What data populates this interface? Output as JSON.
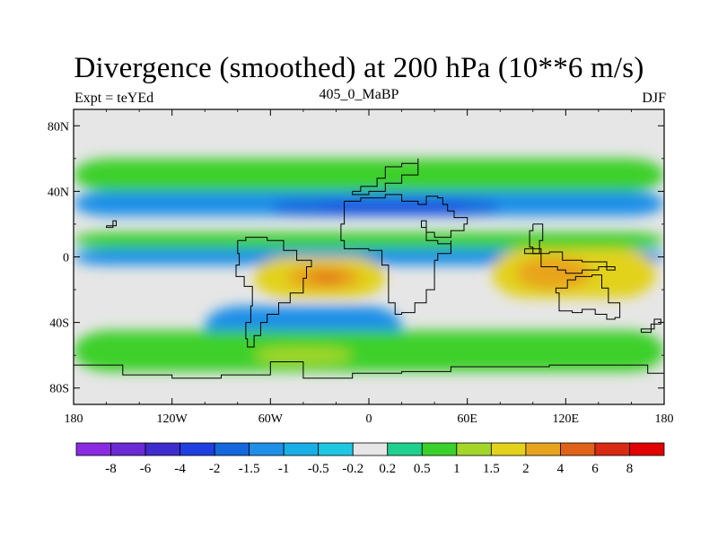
{
  "chart_data": {
    "type": "heatmap",
    "title": "Divergence (smoothed) at 200 hPa (10**6 m/s)",
    "left_subtitle": "Expt = teYEd",
    "center_subtitle": "405_0_MaBP",
    "right_subtitle": "DJF",
    "projection": "cylindrical equidistant",
    "xlim": [
      -180,
      180
    ],
    "ylim": [
      -90,
      90
    ],
    "x_ticks": [
      {
        "value": -180,
        "label": "180"
      },
      {
        "value": -120,
        "label": "120W"
      },
      {
        "value": -60,
        "label": "60W"
      },
      {
        "value": 0,
        "label": "0"
      },
      {
        "value": 60,
        "label": "60E"
      },
      {
        "value": 120,
        "label": "120E"
      },
      {
        "value": 180,
        "label": "180"
      }
    ],
    "y_ticks": [
      {
        "value": 80,
        "label": "80N"
      },
      {
        "value": 40,
        "label": "40N"
      },
      {
        "value": 0,
        "label": "0"
      },
      {
        "value": -40,
        "label": "40S"
      },
      {
        "value": -80,
        "label": "80S"
      }
    ],
    "colorbar": {
      "labels": [
        "-8",
        "-6",
        "-4",
        "-2",
        "-1.5",
        "-1",
        "-0.5",
        "-0.2",
        "0.2",
        "0.5",
        "1",
        "1.5",
        "2",
        "4",
        "6",
        "8"
      ],
      "colors": [
        "#8a2be2",
        "#6a2ad4",
        "#3e2ccf",
        "#1f3fe0",
        "#1467dd",
        "#1f8fe8",
        "#19aee6",
        "#1fc7e2",
        "#e6e6e6",
        "#20d08f",
        "#3cd02c",
        "#a4d62a",
        "#e2d21d",
        "#e8a41e",
        "#e0621a",
        "#d82a14",
        "#e00000"
      ]
    },
    "field_regions": [
      {
        "level": "0.5",
        "lon": [
          -180,
          180
        ],
        "lat": [
          40,
          60
        ]
      },
      {
        "level": "-1",
        "lon": [
          -180,
          180
        ],
        "lat": [
          25,
          40
        ]
      },
      {
        "level": "-1.5",
        "lon": [
          -60,
          80
        ],
        "lat": [
          25,
          35
        ]
      },
      {
        "level": "-2",
        "lon": [
          -30,
          60
        ],
        "lat": [
          28,
          33
        ]
      },
      {
        "level": "0.5",
        "lon": [
          -180,
          180
        ],
        "lat": [
          5,
          15
        ]
      },
      {
        "level": "-1",
        "lon": [
          -180,
          180
        ],
        "lat": [
          -5,
          5
        ]
      },
      {
        "level": "1.5",
        "lon": [
          -70,
          10
        ],
        "lat": [
          -25,
          0
        ]
      },
      {
        "level": "2",
        "lon": [
          -50,
          -5
        ],
        "lat": [
          -20,
          -5
        ]
      },
      {
        "level": "4",
        "lon": [
          -35,
          -15
        ],
        "lat": [
          -15,
          -10
        ]
      },
      {
        "level": "1.5",
        "lon": [
          75,
          175
        ],
        "lat": [
          -25,
          5
        ]
      },
      {
        "level": "2",
        "lon": [
          90,
          135
        ],
        "lat": [
          -20,
          0
        ]
      },
      {
        "level": "-1",
        "lon": [
          -100,
          20
        ],
        "lat": [
          -55,
          -30
        ]
      },
      {
        "level": "0.5",
        "lon": [
          -180,
          180
        ],
        "lat": [
          -70,
          -45
        ]
      },
      {
        "level": "1",
        "lon": [
          -70,
          -10
        ],
        "lat": [
          -65,
          -55
        ]
      }
    ]
  }
}
